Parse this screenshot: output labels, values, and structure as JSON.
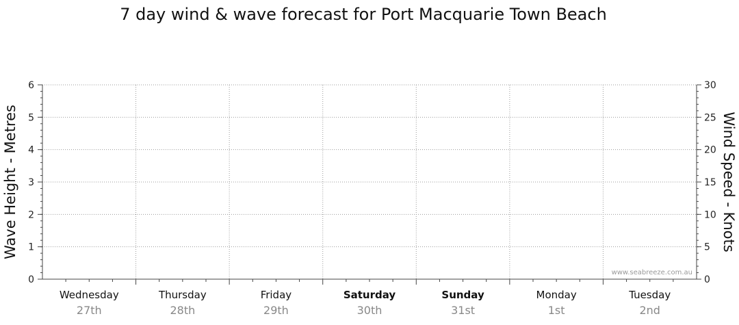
{
  "chart_data": {
    "type": "line",
    "title": "7 day wind & wave forecast for Port Macquarie Town Beach",
    "ylabel": "Wave Height - Metres",
    "y2label": "Wind Speed - Knots",
    "ylim": [
      0,
      6
    ],
    "y2lim": [
      0,
      30
    ],
    "yticks": [
      "0",
      "1",
      "2",
      "3",
      "4",
      "5",
      "6"
    ],
    "y2ticks": [
      "0",
      "5",
      "10",
      "15",
      "20",
      "25",
      "30"
    ],
    "grid": true,
    "days": [
      {
        "name": "Wednesday",
        "date": "27th",
        "weekend": false
      },
      {
        "name": "Thursday",
        "date": "28th",
        "weekend": false
      },
      {
        "name": "Friday",
        "date": "29th",
        "weekend": false
      },
      {
        "name": "Saturday",
        "date": "30th",
        "weekend": true
      },
      {
        "name": "Sunday",
        "date": "31st",
        "weekend": true
      },
      {
        "name": "Monday",
        "date": "1st",
        "weekend": false
      },
      {
        "name": "Tuesday",
        "date": "2nd",
        "weekend": false
      }
    ],
    "series": []
  },
  "watermark": "www.seabreeze.com.au",
  "colors": {
    "grid": "#9a9a9a",
    "axis": "#444444",
    "date": "#888888"
  }
}
